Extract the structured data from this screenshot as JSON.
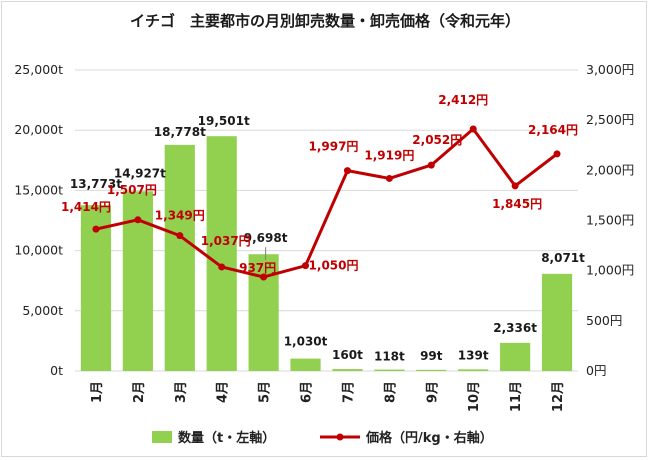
{
  "chart_data": {
    "type": "bar",
    "title": "イチゴ　主要都市の月別卸売数量・卸売価格（令和元年）",
    "categories": [
      "1月",
      "2月",
      "3月",
      "4月",
      "5月",
      "6月",
      "7月",
      "8月",
      "9月",
      "10月",
      "11月",
      "12月"
    ],
    "series": [
      {
        "name": "数量（t・左軸）",
        "type": "bar",
        "axis": "left",
        "color": "#92d050",
        "values": [
          13773,
          14927,
          18778,
          19501,
          9698,
          1030,
          160,
          118,
          99,
          139,
          2336,
          8071
        ],
        "labels": [
          "13,773t",
          "14,927t",
          "18,778t",
          "19,501t",
          "9,698t",
          "1,030t",
          "160t",
          "118t",
          "99t",
          "139t",
          "2,336t",
          "8,071t"
        ]
      },
      {
        "name": "価格（円/kg・右軸）",
        "type": "line",
        "axis": "right",
        "color": "#c00000",
        "values": [
          1414,
          1507,
          1349,
          1037,
          937,
          1050,
          1997,
          1919,
          2052,
          2412,
          1845,
          2164
        ],
        "labels": [
          "1,414円",
          "1,507円",
          "1,349円",
          "1,037円",
          "937円",
          "1,050円",
          "1,997円",
          "1,919円",
          "2,052円",
          "2,412円",
          "1,845円",
          "2,164円"
        ]
      }
    ],
    "y_left": {
      "range": [
        0,
        25000
      ],
      "ticks": [
        0,
        5000,
        10000,
        15000,
        20000,
        25000
      ],
      "tick_labels": [
        "0t",
        "5,000t",
        "10,000t",
        "15,000t",
        "20,000t",
        "25,000t"
      ]
    },
    "y_right": {
      "range": [
        0,
        3000
      ],
      "ticks": [
        0,
        500,
        1000,
        1500,
        2000,
        2500,
        3000
      ],
      "tick_labels": [
        "0円",
        "500円",
        "1,000円",
        "1,500円",
        "2,000円",
        "2,500円",
        "3,000円"
      ]
    },
    "grid": true,
    "legend_position": "bottom"
  }
}
